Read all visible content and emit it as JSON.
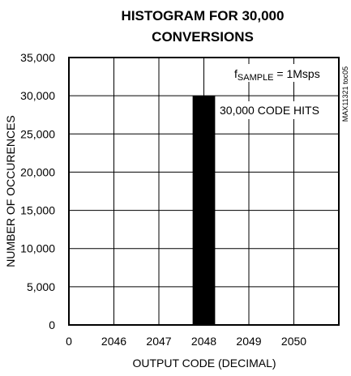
{
  "chart_data": {
    "type": "bar",
    "title_lines": [
      "HISTOGRAM FOR 30,000",
      "CONVERSIONS"
    ],
    "xlabel": "OUTPUT CODE (DECIMAL)",
    "ylabel": "NUMBER OF OCCURENCES",
    "x_ticks": [
      "0",
      "2046",
      "2047",
      "2048",
      "2049",
      "2050"
    ],
    "y_ticks": [
      "0",
      "5,000",
      "10,000",
      "15,000",
      "20,000",
      "25,000",
      "30,000",
      "35,000"
    ],
    "ylim": [
      0,
      35000
    ],
    "grid": true,
    "categories": [
      "2048"
    ],
    "values": [
      30000
    ],
    "bar_color": "#000000",
    "annotations": {
      "fsample_prefix": "f",
      "fsample_sub": "SAMPLE",
      "fsample_value": " = 1Msps",
      "hits": "30,000 CODE HITS"
    },
    "figure_code": "MAX11321 toc05"
  }
}
